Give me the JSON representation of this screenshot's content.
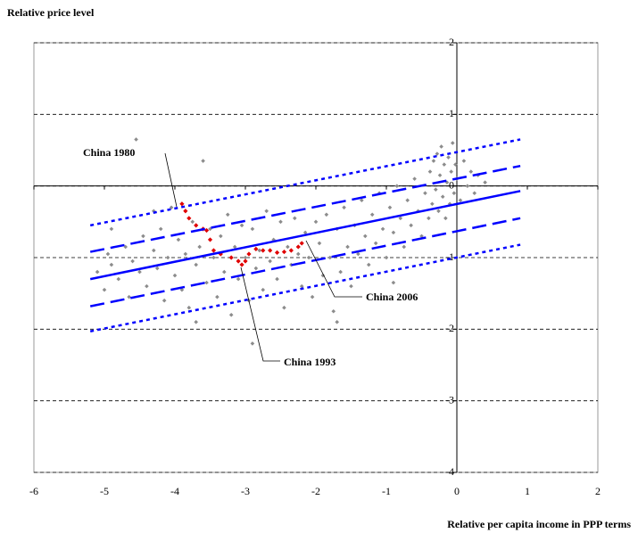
{
  "chart_data": {
    "type": "scatter",
    "ylabel": "Relative price level",
    "xlabel": "Relative per capita income in PPP terms",
    "xlim": [
      -6,
      2
    ],
    "xticks": [
      -6,
      -5,
      -4,
      -3,
      -2,
      -1,
      0,
      1,
      2
    ],
    "ylim": [
      -4,
      2
    ],
    "yticks": [
      -4,
      -3,
      -2,
      -1,
      0,
      1,
      2
    ],
    "grid": true,
    "annotations": [
      "China 1980",
      "China 2006",
      "China 1993"
    ],
    "series": [
      {
        "color": "#8c8c8c",
        "style": "points",
        "x": [
          -5.1,
          -5.0,
          -4.95,
          -4.9,
          -4.8,
          -4.7,
          -4.65,
          -4.6,
          -4.55,
          -4.5,
          -4.45,
          -4.4,
          -4.3,
          -4.25,
          -4.2,
          -4.15,
          -4.1,
          -4.05,
          -4.0,
          -3.95,
          -3.9,
          -3.85,
          -3.8,
          -3.75,
          -3.7,
          -3.65,
          -3.6,
          -3.55,
          -3.5,
          -3.45,
          -3.4,
          -3.35,
          -3.3,
          -3.25,
          -3.2,
          -3.15,
          -3.1,
          -3.05,
          -3.0,
          -2.95,
          -2.9,
          -2.85,
          -2.8,
          -2.75,
          -2.7,
          -2.65,
          -2.6,
          -2.55,
          -2.5,
          -2.45,
          -2.4,
          -2.35,
          -2.3,
          -2.25,
          -2.2,
          -2.15,
          -2.1,
          -2.05,
          -2.0,
          -1.95,
          -1.9,
          -1.85,
          -1.8,
          -1.75,
          -1.7,
          -1.65,
          -1.6,
          -1.55,
          -1.5,
          -1.45,
          -1.4,
          -1.35,
          -1.3,
          -1.25,
          -1.2,
          -1.15,
          -1.1,
          -1.05,
          -1.0,
          -0.95,
          -0.9,
          -0.85,
          -0.8,
          -0.75,
          -0.7,
          -0.65,
          -0.6,
          -0.55,
          -0.5,
          -0.45,
          -0.4,
          -0.38,
          -0.35,
          -0.33,
          -0.3,
          -0.28,
          -0.26,
          -0.24,
          -0.22,
          -0.2,
          -0.18,
          -0.16,
          -0.14,
          -0.12,
          -0.1,
          -0.08,
          -0.06,
          -0.04,
          -0.02,
          0.0,
          0.05,
          0.1,
          0.15,
          0.2,
          0.25,
          0.3,
          0.4,
          -1.7,
          -2.9,
          -3.7,
          -4.9,
          -4.3,
          -0.9
        ],
        "values": [
          -1.2,
          -1.45,
          -0.95,
          -1.1,
          -1.3,
          -0.85,
          -1.55,
          -1.05,
          0.65,
          -1.2,
          -0.7,
          -1.4,
          -0.9,
          -1.15,
          -0.6,
          -1.6,
          -1.0,
          -0.3,
          -1.25,
          -0.75,
          -1.45,
          -0.95,
          -1.7,
          -0.5,
          -1.1,
          -0.85,
          0.35,
          -1.35,
          -0.6,
          -1.0,
          -1.55,
          -0.7,
          -1.2,
          -0.4,
          -1.8,
          -0.85,
          -1.3,
          -0.55,
          -1.0,
          -1.6,
          -0.6,
          -1.15,
          -0.9,
          -1.45,
          -0.35,
          -1.05,
          -0.75,
          -1.3,
          -0.5,
          -1.7,
          -0.85,
          -1.1,
          -0.45,
          -0.95,
          -1.4,
          -0.65,
          -1.0,
          -1.55,
          -0.5,
          -0.8,
          -1.25,
          -0.4,
          -1.0,
          -1.75,
          -0.6,
          -1.2,
          -0.3,
          -0.85,
          -1.4,
          -0.55,
          -0.95,
          -0.2,
          -0.7,
          -1.1,
          -0.4,
          -0.8,
          -0.1,
          -0.6,
          -1.0,
          -0.3,
          -0.65,
          0.0,
          -0.45,
          -0.85,
          -0.2,
          -0.55,
          0.1,
          -0.35,
          -0.7,
          -0.1,
          -0.45,
          0.2,
          -0.25,
          0.35,
          -0.05,
          0.45,
          -0.35,
          0.15,
          0.55,
          -0.15,
          0.3,
          -0.45,
          0.05,
          0.4,
          -0.25,
          0.2,
          0.6,
          -0.1,
          0.3,
          0.1,
          -0.2,
          0.35,
          0.0,
          0.2,
          -0.1,
          0.15,
          0.05,
          -1.9,
          -2.2,
          -1.9,
          -0.6,
          -0.35,
          -1.35
        ]
      },
      {
        "color": "#e00000",
        "style": "points",
        "x": [
          -3.9,
          -3.85,
          -3.8,
          -3.7,
          -3.6,
          -3.55,
          -3.5,
          -3.45,
          -3.35,
          -3.2,
          -3.1,
          -3.05,
          -3.0,
          -2.95,
          -2.85,
          -2.75,
          -2.65,
          -2.55,
          -2.45,
          -2.35,
          -2.25,
          -2.2
        ],
        "values": [
          -0.25,
          -0.35,
          -0.45,
          -0.55,
          -0.6,
          -0.62,
          -0.75,
          -0.9,
          -0.95,
          -1.0,
          -1.05,
          -1.1,
          -1.05,
          -0.95,
          -0.88,
          -0.9,
          -0.9,
          -0.93,
          -0.92,
          -0.9,
          -0.85,
          -0.8
        ]
      },
      {
        "color": "#0000ff",
        "style": "solid",
        "x": [
          -5.2,
          0.9
        ],
        "values": [
          -1.3,
          -0.07
        ]
      },
      {
        "color": "#0000ff",
        "style": "dashed",
        "x": [
          -5.2,
          0.9
        ],
        "values": [
          -0.92,
          0.28
        ]
      },
      {
        "color": "#0000ff",
        "style": "dashed",
        "x": [
          -5.2,
          0.9
        ],
        "values": [
          -1.68,
          -0.45
        ]
      },
      {
        "color": "#0000ff",
        "style": "dotted",
        "x": [
          -5.2,
          0.9
        ],
        "values": [
          -0.55,
          0.65
        ]
      },
      {
        "color": "#0000ff",
        "style": "dotted",
        "x": [
          -5.2,
          0.9
        ],
        "values": [
          -2.03,
          -0.82
        ]
      }
    ]
  }
}
